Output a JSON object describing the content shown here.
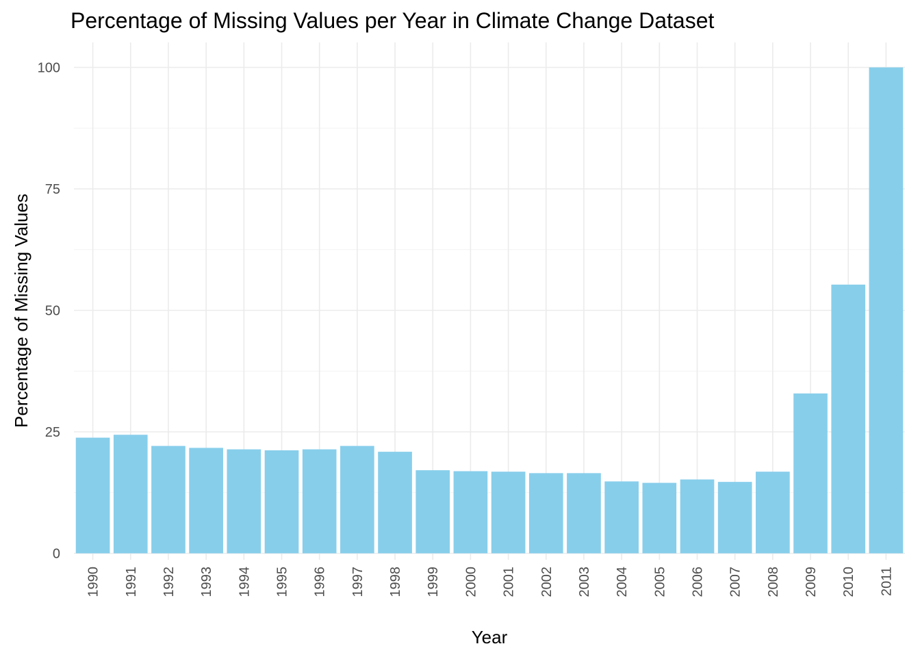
{
  "chart_data": {
    "type": "bar",
    "title": "Percentage of Missing Values per Year in Climate Change Dataset",
    "xlabel": "Year",
    "ylabel": "Percentage of Missing Values",
    "categories": [
      "1990",
      "1991",
      "1992",
      "1993",
      "1994",
      "1995",
      "1996",
      "1997",
      "1998",
      "1999",
      "2000",
      "2001",
      "2002",
      "2003",
      "2004",
      "2005",
      "2006",
      "2007",
      "2008",
      "2009",
      "2010",
      "2011"
    ],
    "values": [
      23.8,
      24.4,
      22.1,
      21.7,
      21.4,
      21.2,
      21.4,
      22.1,
      20.9,
      17.1,
      16.9,
      16.8,
      16.5,
      16.5,
      14.8,
      14.5,
      15.2,
      14.7,
      16.8,
      32.9,
      55.3,
      100
    ],
    "ylim": [
      0,
      105
    ],
    "yticks": [
      0,
      25,
      50,
      75,
      100
    ],
    "ytick_labels": [
      "0",
      "25",
      "50",
      "75",
      "100"
    ],
    "grid": true,
    "legend": "none",
    "bar_color": "#87CEEB"
  }
}
